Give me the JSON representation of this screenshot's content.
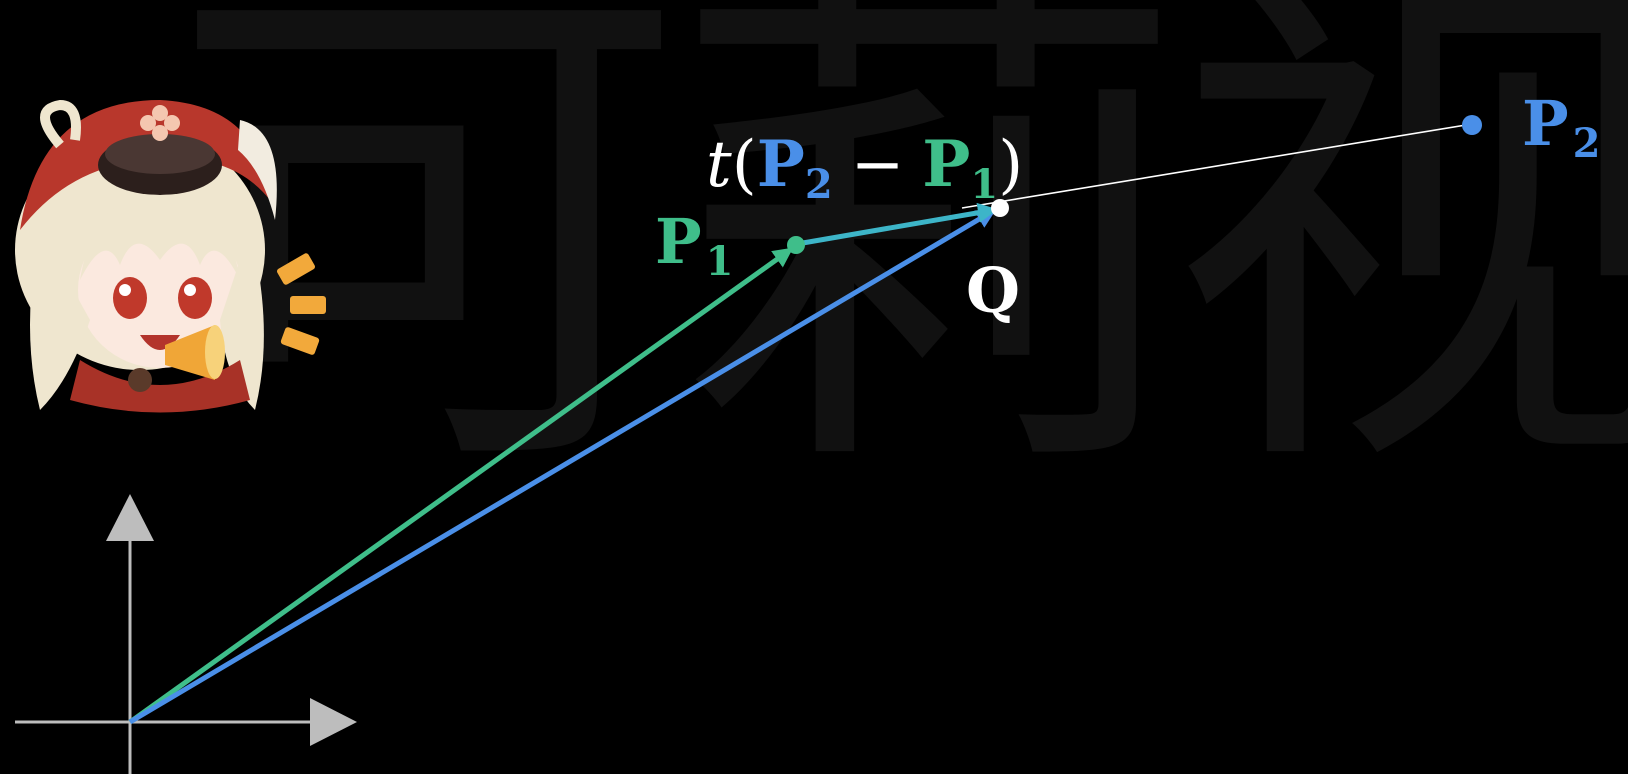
{
  "watermark": "可莉视",
  "colors": {
    "background": "#000000",
    "green": "#3fbe8a",
    "blue": "#4a8fe8",
    "white": "#ffffff",
    "axis": "#bdbdbd",
    "watermark": "#111111"
  },
  "points": {
    "p1": {
      "base": "P",
      "sub": "1"
    },
    "p2": {
      "base": "P",
      "sub": "2"
    },
    "q": {
      "base": "Q"
    }
  },
  "formula": {
    "t": "t",
    "open": "(",
    "p2_base": "P",
    "p2_sub": "2",
    "minus": "−",
    "p1_base": "P",
    "p1_sub": "1",
    "close": ")"
  },
  "mascot": {
    "icon": "klee-mascot-icon",
    "accessory": "megaphone-icon"
  }
}
